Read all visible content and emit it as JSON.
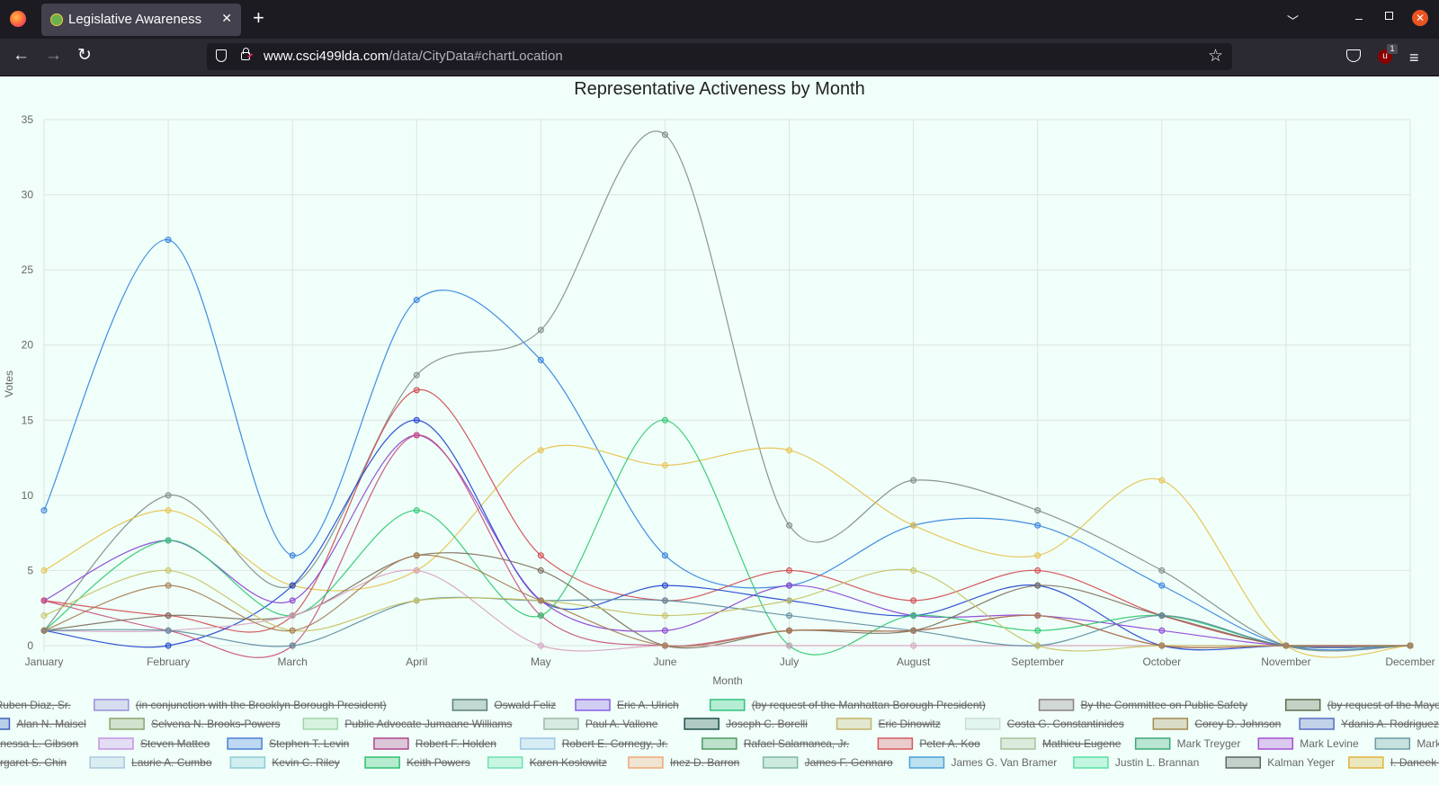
{
  "browser": {
    "tab_title": "Legislative Awareness",
    "url_host": "www.csci499lda.com",
    "url_path": "/data/CityData#chartLocation",
    "extension_badge": "1",
    "extension_label": "u"
  },
  "chart_data": {
    "type": "line",
    "title": "Representative Activeness by Month",
    "xlabel": "Month",
    "ylabel": "Votes",
    "categories": [
      "January",
      "February",
      "March",
      "April",
      "May",
      "June",
      "July",
      "August",
      "September",
      "October",
      "November",
      "December"
    ],
    "ylim": [
      0,
      35
    ],
    "yticks": [
      0,
      5,
      10,
      15,
      20,
      25,
      30,
      35
    ],
    "grid": true,
    "legend_position": "bottom",
    "series": [
      {
        "name": "Ruben Diaz, Sr.",
        "color": "#7a5a80",
        "hidden": true
      },
      {
        "name": "(in conjunction with the Brooklyn Borough President)",
        "color": "#9b8fd8",
        "hidden": true
      },
      {
        "name": "Oswald Feliz",
        "color": "#5b7f7a",
        "hidden": true
      },
      {
        "name": "Eric A. Ulrich",
        "color": "#8a5ce6",
        "hidden": true
      },
      {
        "name": "(by request of the Manhattan Borough President)",
        "color": "#2ec27e",
        "hidden": true
      },
      {
        "name": "By the Committee on Public Safety",
        "color": "#8a7f86",
        "hidden": true
      },
      {
        "name": "(by request of the Mayor)",
        "color": "#5e6b4d",
        "hidden": true
      },
      {
        "name": "Alan N. Maisel",
        "color": "#3b5fc0",
        "hidden": true
      },
      {
        "name": "Selvena N. Brooks-Powers",
        "color": "#8aa36a",
        "hidden": true
      },
      {
        "name": "Public Advocate Jumaane Williams",
        "color": "#9ed6a6",
        "hidden": true
      },
      {
        "name": "Paul A. Vallone",
        "color": "#9db8a8",
        "hidden": true
      },
      {
        "name": "Joseph C. Borelli",
        "color": "#1f4f4a",
        "hidden": true
      },
      {
        "name": "Eric Dinowitz",
        "color": "#c2b36b",
        "hidden": true
      },
      {
        "name": "Costa G. Constantinides",
        "color": "#c7ded6",
        "hidden": true
      },
      {
        "name": "Corey D. Johnson",
        "color": "#a68a50",
        "hidden": true
      },
      {
        "name": "Ydanis A. Rodriguez",
        "color": "#5a6cc4",
        "hidden": true
      },
      {
        "name": "Vanessa L. Gibson",
        "color": "#3da58a",
        "hidden": true
      },
      {
        "name": "Steven Matteo",
        "color": "#c792e6",
        "hidden": true
      },
      {
        "name": "Stephen T. Levin",
        "color": "#4a7fd9",
        "hidden": true
      },
      {
        "name": "Robert F. Holden",
        "color": "#b0458a",
        "hidden": true
      },
      {
        "name": "Robert E. Cornegy, Jr.",
        "color": "#9cc5e8",
        "hidden": true
      },
      {
        "name": "Rafael Salamanca, Jr.",
        "color": "#4d9a60",
        "hidden": true
      },
      {
        "name": "Peter A. Koo",
        "color": "#d9575f",
        "hidden": true
      },
      {
        "name": "Mathieu Eugene",
        "color": "#a8c09a",
        "hidden": true
      },
      {
        "name": "Mark Treyger",
        "color": "#3aa876",
        "hidden": false,
        "values": [
          1,
          7,
          2,
          9,
          2,
          15,
          0,
          2,
          1,
          2,
          0,
          0
        ]
      },
      {
        "name": "Mark Levine",
        "color": "#a74fd4",
        "hidden": false,
        "values": [
          2,
          5,
          3,
          18,
          2,
          1,
          2,
          1,
          2,
          1,
          0,
          0
        ]
      },
      {
        "name": "Mark Gjonaj",
        "color": "#6b9ca3",
        "hidden": false,
        "values": [
          3,
          2,
          4,
          14,
          3,
          0,
          2,
          1,
          0,
          0,
          0,
          0
        ]
      },
      {
        "name": "Margaret S. Chin",
        "color": "#a9ccbf",
        "hidden": true
      },
      {
        "name": "Laurie A. Cumbo",
        "color": "#aac7e0",
        "hidden": true
      },
      {
        "name": "Kevin C. Riley",
        "color": "#8ecad6",
        "hidden": true
      },
      {
        "name": "Keith Powers",
        "color": "#2fbf71",
        "hidden": true
      },
      {
        "name": "Karen Koslowitz",
        "color": "#6fe0b0",
        "hidden": true
      },
      {
        "name": "Inez D. Barron",
        "color": "#f0a878",
        "hidden": true
      },
      {
        "name": "James F. Gennaro",
        "color": "#7fb8a3",
        "hidden": true
      },
      {
        "name": "James G. Van Bramer",
        "color": "#4aa0d8",
        "hidden": false,
        "values": [
          1,
          1,
          3,
          3,
          3,
          2,
          4,
          3,
          4,
          2,
          0,
          0
        ]
      },
      {
        "name": "Justin L. Brannan",
        "color": "#58e0a4",
        "hidden": false,
        "values": [
          1,
          7,
          2,
          5,
          13,
          12,
          13,
          8,
          6,
          11,
          0,
          0
        ]
      },
      {
        "name": "Kalman Yeger",
        "color": "#5c6660",
        "hidden": false,
        "values": [
          1,
          10,
          4,
          18,
          21,
          34,
          8,
          11,
          9,
          5,
          0,
          0
        ]
      },
      {
        "name": "I. Daneek Miller",
        "color": "#e0b33a",
        "hidden": true
      }
    ],
    "plotted_lines": [
      {
        "color": "#2f7fe0",
        "values": [
          9,
          27,
          6,
          23,
          19,
          6,
          4,
          8,
          8,
          4,
          0,
          0
        ]
      },
      {
        "color": "#808a86",
        "values": [
          1,
          10,
          4,
          18,
          21,
          34,
          8,
          11,
          9,
          5,
          0,
          0
        ]
      },
      {
        "color": "#e8c04a",
        "values": [
          5,
          9,
          4,
          5,
          13,
          12,
          13,
          8,
          6,
          11,
          0,
          0
        ]
      },
      {
        "color": "#d2484f",
        "values": [
          3,
          2,
          2,
          17,
          6,
          3,
          5,
          3,
          5,
          2,
          0,
          0
        ]
      },
      {
        "color": "#1e3fcf",
        "values": [
          1,
          0,
          4,
          15,
          3,
          4,
          3,
          2,
          4,
          0,
          0,
          0
        ]
      },
      {
        "color": "#8a3fd4",
        "values": [
          3,
          7,
          3,
          14,
          3,
          1,
          4,
          2,
          2,
          1,
          0,
          0
        ]
      },
      {
        "color": "#c94d7a",
        "values": [
          3,
          1,
          0,
          14,
          2,
          0,
          1,
          1,
          2,
          0,
          0,
          0
        ]
      },
      {
        "color": "#2bc76e",
        "values": [
          1,
          7,
          2,
          9,
          2,
          15,
          0,
          2,
          1,
          2,
          0,
          0
        ]
      },
      {
        "color": "#7a6a5a",
        "values": [
          1,
          2,
          2,
          6,
          5,
          0,
          1,
          1,
          4,
          2,
          0,
          0
        ]
      },
      {
        "color": "#d8a0c0",
        "values": [
          1,
          1,
          2,
          5,
          0,
          0,
          0,
          0,
          0,
          0,
          0,
          0
        ]
      },
      {
        "color": "#5a8aa0",
        "values": [
          1,
          1,
          0,
          3,
          3,
          3,
          2,
          1,
          0,
          2,
          0,
          0
        ]
      },
      {
        "color": "#c6c060",
        "values": [
          2,
          5,
          1,
          3,
          3,
          2,
          3,
          5,
          0,
          0,
          0,
          0
        ]
      },
      {
        "color": "#a67a50",
        "values": [
          1,
          4,
          1,
          6,
          3,
          0,
          1,
          1,
          2,
          0,
          0,
          0
        ]
      }
    ]
  }
}
